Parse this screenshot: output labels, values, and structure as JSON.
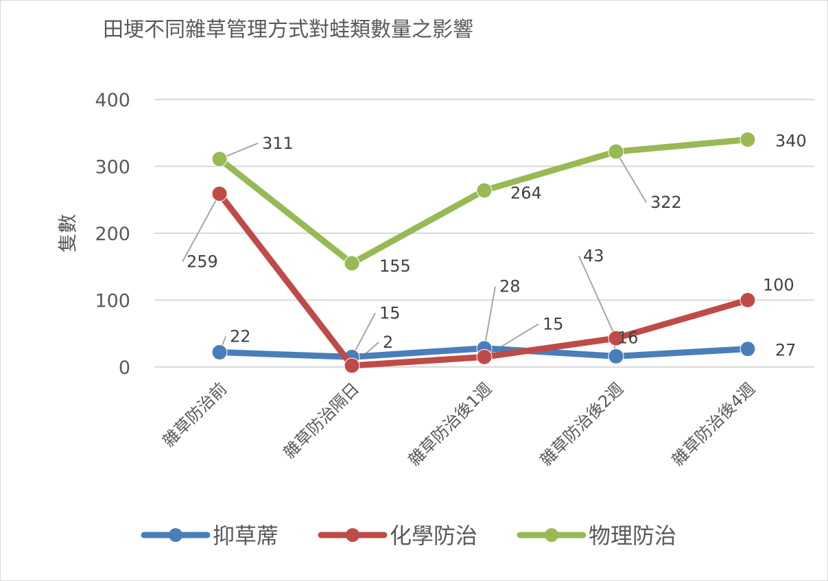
{
  "chart_data": {
    "type": "line",
    "title": "田埂不同雜草管理方式對蛙類數量之影響",
    "xlabel": "",
    "ylabel": "隻數",
    "ylim": [
      0,
      400
    ],
    "yticks": [
      0,
      100,
      200,
      300,
      400
    ],
    "grid": true,
    "legend_position": "bottom",
    "categories": [
      "雜草防治前",
      "雜草防治隔日",
      "雜草防治後1週",
      "雜草防治後2週",
      "雜草防治後4週"
    ],
    "series": [
      {
        "name": "抑草蓆",
        "color": "#4a7ebb",
        "values": [
          22,
          15,
          28,
          16,
          27
        ]
      },
      {
        "name": "化學防治",
        "color": "#be4b48",
        "values": [
          259,
          2,
          15,
          43,
          100
        ]
      },
      {
        "name": "物理防治",
        "color": "#98b954",
        "values": [
          311,
          155,
          264,
          322,
          340
        ]
      }
    ]
  },
  "colors": {
    "grid": "#d9d9d9",
    "text": "#595959",
    "leader": "#a6a6a6"
  }
}
